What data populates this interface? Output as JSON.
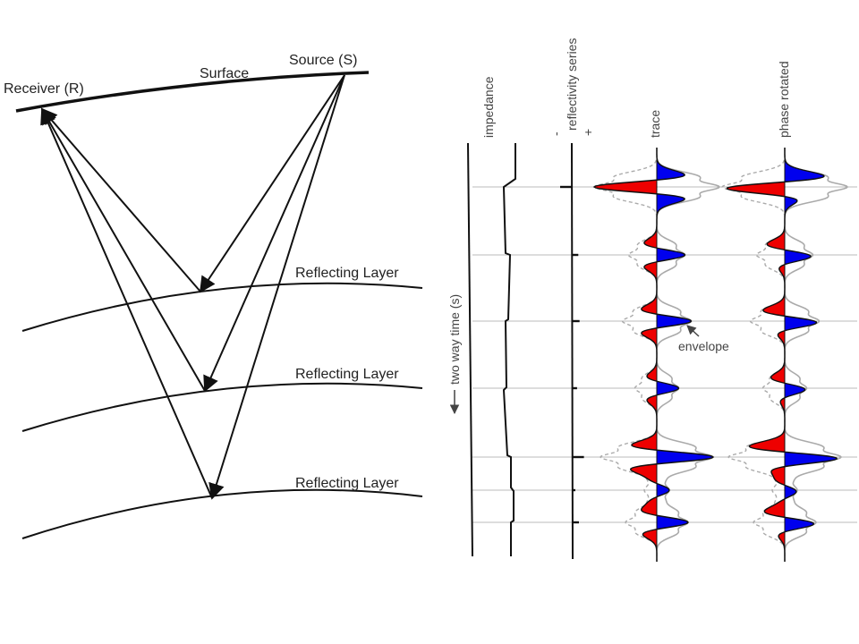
{
  "geometry_labels": {
    "receiver": "Receiver (R)",
    "surface": "Surface",
    "source": "Source (S)",
    "layer1": "Reflecting Layer",
    "layer2": "Reflecting Layer",
    "layer3": "Reflecting Layer"
  },
  "trace_panel": {
    "impedance": "impedance",
    "reflectivity": "reflectivity series",
    "reflectivity_minus": "-",
    "reflectivity_plus": "+",
    "trace": "trace",
    "phase_rotated": "phase rotated",
    "two_way_time": "two way time (s)",
    "envelope": "envelope"
  },
  "colors": {
    "line": "#111111",
    "positive_lobe": "#0000ee",
    "negative_lobe": "#ee0000",
    "envelope": "#aaaaaa",
    "gridline": "#bbbbbb"
  },
  "reflectors": [
    {
      "amplitude": -1.0
    },
    {
      "amplitude": 0.45
    },
    {
      "amplitude": 0.55
    },
    {
      "amplitude": 0.35
    },
    {
      "amplitude": 0.9
    },
    {
      "amplitude": 0.2
    },
    {
      "amplitude": 0.5
    }
  ]
}
